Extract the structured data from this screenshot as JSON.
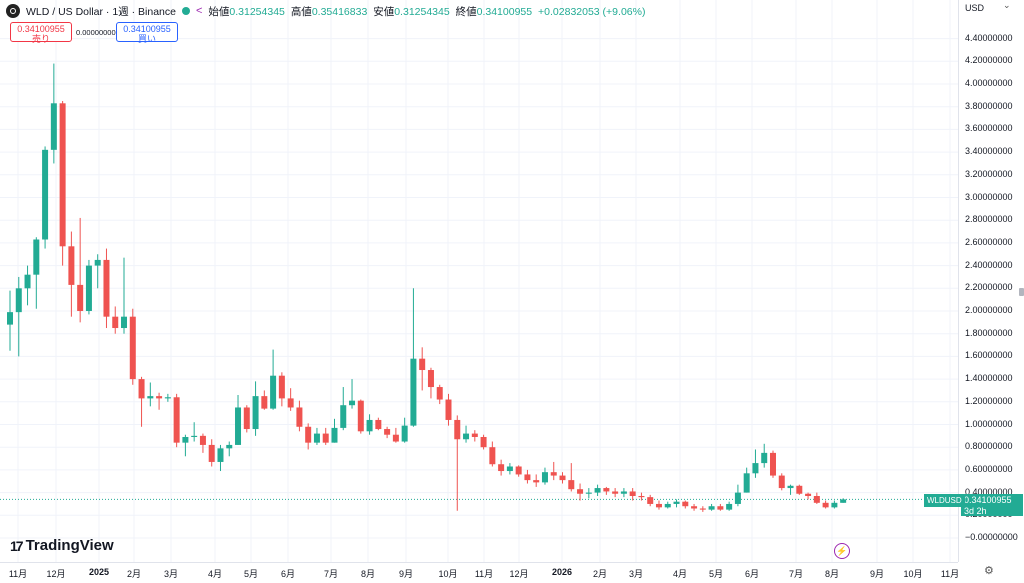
{
  "header": {
    "symbol_title": "WLD / US Dollar · 1週 · Binance",
    "open_label": "始値",
    "open_value": "0.31254345",
    "high_label": "高値",
    "high_value": "0.35416833",
    "low_label": "安値",
    "low_value": "0.31254345",
    "close_label": "終値",
    "close_value": "0.34100955",
    "change": "+0.02832053 (+9.06%)"
  },
  "trade": {
    "sell_price": "0.34100955",
    "sell_label": "売り",
    "spread": "0.00000000",
    "buy_price": "0.34100955",
    "buy_label": "買い"
  },
  "price_axis": {
    "currency": "USD",
    "labels": [
      "4.40000000",
      "4.20000000",
      "4.00000000",
      "3.80000000",
      "3.60000000",
      "3.40000000",
      "3.20000000",
      "3.00000000",
      "2.80000000",
      "2.60000000",
      "2.40000000",
      "2.20000000",
      "2.00000000",
      "1.80000000",
      "1.60000000",
      "1.40000000",
      "1.20000000",
      "1.00000000",
      "0.80000000",
      "0.60000000",
      "0.40000000",
      "0.20000000",
      "−0.00000000"
    ]
  },
  "last_price": {
    "symbol": "WLDUSD",
    "price": "0.34100955",
    "countdown": "3d 2h"
  },
  "time_axis": [
    "11月",
    "12月",
    "2025",
    "2月",
    "3月",
    "4月",
    "5月",
    "6月",
    "7月",
    "8月",
    "9月",
    "10月",
    "11月",
    "12月",
    "2026",
    "2月",
    "3月",
    "4月",
    "5月",
    "6月",
    "7月",
    "8月",
    "9月",
    "10月",
    "11月"
  ],
  "branding": {
    "logo_text": "TradingView"
  },
  "colors": {
    "up": "#22ab94",
    "down": "#ef5350",
    "grid": "#f0f3fa"
  },
  "chart_data": {
    "type": "candlestick",
    "title": "WLD / US Dollar · 1週 · Binance",
    "interval": "1週",
    "ylim": [
      -0.2,
      4.5
    ],
    "grid": true,
    "candles": [
      [
        1.88,
        1.99,
        1.65,
        2.18
      ],
      [
        1.99,
        2.2,
        1.6,
        2.3
      ],
      [
        2.2,
        2.32,
        2.05,
        2.4
      ],
      [
        2.32,
        2.63,
        2.02,
        2.65
      ],
      [
        2.63,
        3.42,
        2.55,
        3.45
      ],
      [
        3.42,
        3.83,
        3.3,
        4.18
      ],
      [
        3.83,
        2.57,
        2.4,
        3.85
      ],
      [
        2.57,
        2.23,
        1.95,
        2.7
      ],
      [
        2.23,
        2.0,
        1.9,
        2.82
      ],
      [
        2.0,
        2.4,
        1.97,
        2.45
      ],
      [
        2.4,
        2.45,
        2.2,
        2.5
      ],
      [
        2.45,
        1.95,
        1.85,
        2.55
      ],
      [
        1.95,
        1.85,
        1.8,
        2.04
      ],
      [
        1.85,
        1.95,
        1.8,
        2.47
      ],
      [
        1.95,
        1.4,
        1.35,
        2.02
      ],
      [
        1.4,
        1.23,
        0.98,
        1.42
      ],
      [
        1.23,
        1.25,
        1.16,
        1.37
      ],
      [
        1.25,
        1.23,
        1.13,
        1.28
      ],
      [
        1.23,
        1.24,
        1.2,
        1.27
      ],
      [
        1.24,
        0.84,
        0.8,
        1.27
      ],
      [
        0.84,
        0.89,
        0.72,
        0.91
      ],
      [
        0.89,
        0.9,
        0.85,
        1.02
      ],
      [
        0.9,
        0.82,
        0.75,
        0.92
      ],
      [
        0.82,
        0.67,
        0.63,
        0.87
      ],
      [
        0.67,
        0.79,
        0.59,
        0.82
      ],
      [
        0.79,
        0.82,
        0.72,
        0.85
      ],
      [
        0.82,
        1.15,
        0.82,
        1.26
      ],
      [
        1.15,
        0.96,
        0.93,
        1.17
      ],
      [
        0.96,
        1.25,
        0.9,
        1.38
      ],
      [
        1.25,
        1.14,
        1.13,
        1.3
      ],
      [
        1.14,
        1.43,
        1.13,
        1.66
      ],
      [
        1.43,
        1.23,
        1.16,
        1.46
      ],
      [
        1.23,
        1.15,
        1.12,
        1.32
      ],
      [
        1.15,
        0.98,
        0.94,
        1.21
      ],
      [
        0.98,
        0.84,
        0.78,
        1.01
      ],
      [
        0.84,
        0.92,
        0.82,
        0.97
      ],
      [
        0.92,
        0.84,
        0.82,
        0.97
      ],
      [
        0.84,
        0.97,
        0.84,
        1.05
      ],
      [
        0.97,
        1.17,
        0.95,
        1.33
      ],
      [
        1.17,
        1.21,
        1.14,
        1.4
      ],
      [
        1.21,
        0.94,
        0.92,
        1.22
      ],
      [
        0.94,
        1.04,
        0.91,
        1.09
      ],
      [
        1.04,
        0.96,
        0.95,
        1.06
      ],
      [
        0.96,
        0.91,
        0.88,
        0.98
      ],
      [
        0.91,
        0.85,
        0.84,
        0.97
      ],
      [
        0.85,
        0.99,
        0.84,
        1.06
      ],
      [
        0.99,
        1.58,
        0.98,
        2.2
      ],
      [
        1.58,
        1.48,
        1.3,
        1.68
      ],
      [
        1.48,
        1.33,
        1.23,
        1.5
      ],
      [
        1.33,
        1.22,
        1.18,
        1.35
      ],
      [
        1.22,
        1.04,
        0.99,
        1.27
      ],
      [
        1.04,
        0.87,
        0.24,
        1.08
      ],
      [
        0.87,
        0.92,
        0.84,
        0.99
      ],
      [
        0.92,
        0.89,
        0.85,
        0.95
      ],
      [
        0.89,
        0.8,
        0.78,
        0.91
      ],
      [
        0.8,
        0.65,
        0.63,
        0.85
      ],
      [
        0.65,
        0.59,
        0.55,
        0.69
      ],
      [
        0.59,
        0.63,
        0.56,
        0.66
      ],
      [
        0.63,
        0.56,
        0.54,
        0.64
      ],
      [
        0.56,
        0.51,
        0.48,
        0.6
      ],
      [
        0.51,
        0.49,
        0.45,
        0.56
      ],
      [
        0.49,
        0.58,
        0.47,
        0.62
      ],
      [
        0.58,
        0.55,
        0.51,
        0.67
      ],
      [
        0.55,
        0.51,
        0.48,
        0.58
      ],
      [
        0.51,
        0.43,
        0.41,
        0.66
      ],
      [
        0.43,
        0.39,
        0.33,
        0.48
      ],
      [
        0.39,
        0.4,
        0.35,
        0.44
      ],
      [
        0.4,
        0.44,
        0.37,
        0.47
      ],
      [
        0.44,
        0.41,
        0.38,
        0.45
      ],
      [
        0.41,
        0.39,
        0.36,
        0.44
      ],
      [
        0.39,
        0.41,
        0.36,
        0.44
      ],
      [
        0.41,
        0.37,
        0.33,
        0.44
      ],
      [
        0.37,
        0.36,
        0.33,
        0.4
      ],
      [
        0.36,
        0.3,
        0.28,
        0.38
      ],
      [
        0.3,
        0.27,
        0.25,
        0.33
      ],
      [
        0.27,
        0.3,
        0.26,
        0.32
      ],
      [
        0.3,
        0.32,
        0.27,
        0.34
      ],
      [
        0.32,
        0.28,
        0.26,
        0.33
      ],
      [
        0.28,
        0.26,
        0.24,
        0.3
      ],
      [
        0.26,
        0.25,
        0.23,
        0.28
      ],
      [
        0.25,
        0.28,
        0.24,
        0.3
      ],
      [
        0.28,
        0.25,
        0.24,
        0.3
      ],
      [
        0.25,
        0.3,
        0.24,
        0.32
      ],
      [
        0.3,
        0.4,
        0.28,
        0.47
      ],
      [
        0.4,
        0.57,
        0.4,
        0.62
      ],
      [
        0.57,
        0.66,
        0.53,
        0.78
      ],
      [
        0.66,
        0.75,
        0.62,
        0.83
      ],
      [
        0.75,
        0.55,
        0.53,
        0.77
      ],
      [
        0.55,
        0.44,
        0.42,
        0.57
      ],
      [
        0.44,
        0.46,
        0.38,
        0.47
      ],
      [
        0.46,
        0.39,
        0.38,
        0.47
      ],
      [
        0.39,
        0.37,
        0.34,
        0.4
      ],
      [
        0.37,
        0.31,
        0.3,
        0.4
      ],
      [
        0.31,
        0.27,
        0.26,
        0.33
      ],
      [
        0.27,
        0.31,
        0.26,
        0.33
      ],
      [
        0.31,
        0.34,
        0.31,
        0.35
      ]
    ]
  }
}
